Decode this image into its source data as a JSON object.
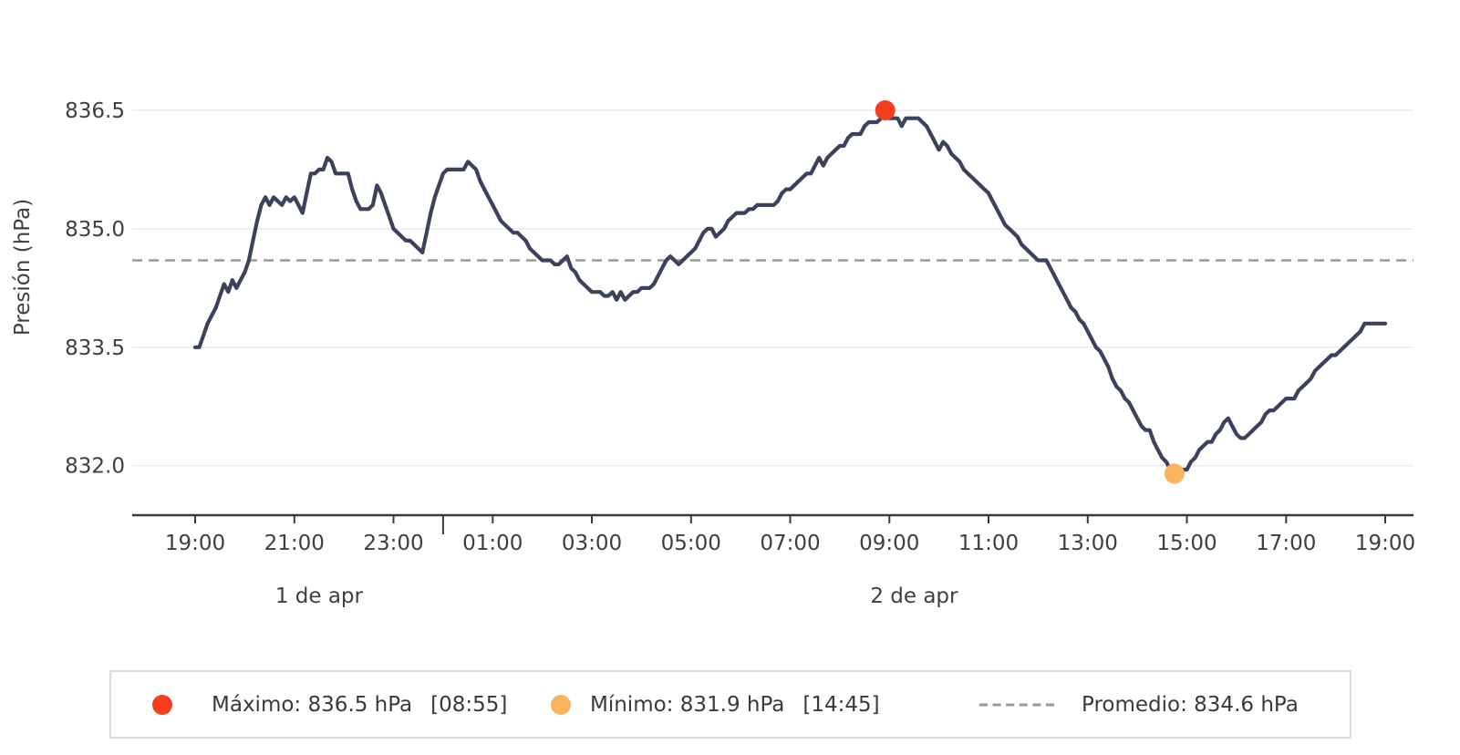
{
  "page": {
    "background": "#ffffff"
  },
  "chart_data": {
    "type": "line",
    "title": "",
    "xlabel": "",
    "ylabel": "Presión (hPa)",
    "unit": "hPa",
    "grid": true,
    "legend_position": "bottom",
    "ylim": [
      831.3,
      837.0
    ],
    "yticks": [
      836.5,
      835.0,
      833.5,
      832.0
    ],
    "ytick_labels": [
      "836.5",
      "835.0",
      "833.5",
      "832.0"
    ],
    "x_start_label": "19:00",
    "sample_interval_minutes": 5,
    "xtick_hour_offsets": [
      0,
      2,
      4,
      6,
      8,
      10,
      12,
      14,
      16,
      18,
      20,
      22,
      24
    ],
    "xtick_labels": [
      "19:00",
      "21:00",
      "23:00",
      "01:00",
      "03:00",
      "05:00",
      "07:00",
      "09:00",
      "11:00",
      "13:00",
      "15:00",
      "17:00",
      "19:00"
    ],
    "day_separator_hour_offset": 5,
    "day_labels": [
      {
        "label": "1 de apr",
        "center_hour_offset": 2.5
      },
      {
        "label": "2 de apr",
        "center_hour_offset": 14.5
      }
    ],
    "average_hpa": 834.6,
    "max": {
      "value_hpa": 836.5,
      "time_label": "08:55",
      "sample_index": 167,
      "color": "#f53d20"
    },
    "min": {
      "value_hpa": 831.9,
      "time_label": "14:45",
      "sample_index": 237,
      "color": "#f9b45f"
    },
    "line_color": "#3d425c",
    "average_line_color": "#999999",
    "values_hpa": [
      833.5,
      833.5,
      833.65,
      833.8,
      833.9,
      834.0,
      834.15,
      834.3,
      834.2,
      834.35,
      834.25,
      834.35,
      834.45,
      834.6,
      834.85,
      835.1,
      835.3,
      835.4,
      835.3,
      835.4,
      835.35,
      835.3,
      835.4,
      835.35,
      835.4,
      835.3,
      835.2,
      835.45,
      835.7,
      835.7,
      835.75,
      835.75,
      835.9,
      835.85,
      835.7,
      835.7,
      835.7,
      835.7,
      835.5,
      835.35,
      835.25,
      835.25,
      835.25,
      835.3,
      835.55,
      835.45,
      835.3,
      835.15,
      835.0,
      834.95,
      834.9,
      834.85,
      834.85,
      834.8,
      834.75,
      834.7,
      834.95,
      835.2,
      835.4,
      835.55,
      835.7,
      835.75,
      835.75,
      835.75,
      835.75,
      835.75,
      835.85,
      835.8,
      835.75,
      835.6,
      835.5,
      835.4,
      835.3,
      835.2,
      835.1,
      835.05,
      835.0,
      834.95,
      834.95,
      834.9,
      834.85,
      834.75,
      834.7,
      834.65,
      834.6,
      834.6,
      834.6,
      834.55,
      834.55,
      834.6,
      834.65,
      834.5,
      834.45,
      834.35,
      834.3,
      834.25,
      834.2,
      834.2,
      834.2,
      834.15,
      834.15,
      834.2,
      834.1,
      834.2,
      834.1,
      834.15,
      834.2,
      834.2,
      834.25,
      834.25,
      834.25,
      834.3,
      834.4,
      834.5,
      834.6,
      834.65,
      834.6,
      834.55,
      834.6,
      834.65,
      834.7,
      834.75,
      834.85,
      834.95,
      835.0,
      835.0,
      834.9,
      834.95,
      835.0,
      835.1,
      835.15,
      835.2,
      835.2,
      835.2,
      835.25,
      835.25,
      835.3,
      835.3,
      835.3,
      835.3,
      835.3,
      835.35,
      835.45,
      835.5,
      835.5,
      835.55,
      835.6,
      835.65,
      835.7,
      835.7,
      835.8,
      835.9,
      835.8,
      835.9,
      835.95,
      836.0,
      836.05,
      836.05,
      836.15,
      836.2,
      836.2,
      836.2,
      836.3,
      836.35,
      836.35,
      836.35,
      836.4,
      836.5,
      836.4,
      836.4,
      836.4,
      836.3,
      836.4,
      836.4,
      836.4,
      836.4,
      836.35,
      836.3,
      836.2,
      836.1,
      836.0,
      836.1,
      836.05,
      835.95,
      835.9,
      835.85,
      835.75,
      835.7,
      835.65,
      835.6,
      835.55,
      835.5,
      835.45,
      835.35,
      835.25,
      835.15,
      835.05,
      835.0,
      834.95,
      834.9,
      834.8,
      834.75,
      834.7,
      834.65,
      834.6,
      834.6,
      834.6,
      834.5,
      834.4,
      834.3,
      834.2,
      834.1,
      834.0,
      833.95,
      833.85,
      833.8,
      833.7,
      833.6,
      833.5,
      833.45,
      833.35,
      833.25,
      833.1,
      833.0,
      832.95,
      832.85,
      832.8,
      832.7,
      832.6,
      832.5,
      832.45,
      832.45,
      832.3,
      832.2,
      832.1,
      832.05,
      831.95,
      831.9,
      831.95,
      831.95,
      831.95,
      832.05,
      832.1,
      832.2,
      832.25,
      832.3,
      832.3,
      832.4,
      832.45,
      832.55,
      832.6,
      832.5,
      832.4,
      832.35,
      832.35,
      832.4,
      832.45,
      832.5,
      832.55,
      832.65,
      832.7,
      832.7,
      832.75,
      832.8,
      832.85,
      832.85,
      832.85,
      832.95,
      833.0,
      833.05,
      833.1,
      833.2,
      833.25,
      833.3,
      833.35,
      833.4,
      833.4,
      833.45,
      833.5,
      833.55,
      833.6,
      833.65,
      833.7,
      833.8,
      833.8,
      833.8,
      833.8,
      833.8,
      833.8
    ]
  },
  "legend": {
    "items": [
      {
        "marker": "dot",
        "color": "#f53d20",
        "label": "Máximo: 836.5 hPa",
        "time": "[08:55]"
      },
      {
        "marker": "dot",
        "color": "#f9b45f",
        "label": "Mínimo: 831.9 hPa",
        "time": "[14:45]"
      },
      {
        "marker": "dashed-line",
        "color": "#999999",
        "label": "Promedio: 834.6 hPa",
        "time": ""
      }
    ]
  }
}
